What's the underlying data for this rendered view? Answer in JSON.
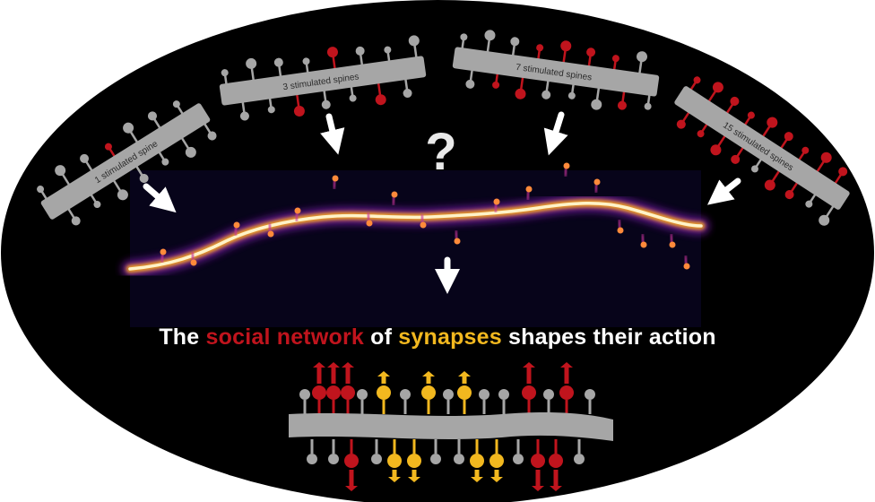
{
  "question_mark": "?",
  "headline": {
    "part1": "The ",
    "red_phrase": "social network",
    "part2": " of ",
    "yellow_word": "synapses",
    "part3": " shapes their action"
  },
  "conditions": [
    {
      "label": "1 stimulated spine",
      "stimulated": 1
    },
    {
      "label": "3 stimulated spines",
      "stimulated": 3
    },
    {
      "label": "7 stimulated spines",
      "stimulated": 7
    },
    {
      "label": "15 stimulated spines",
      "stimulated": 15
    }
  ],
  "colors": {
    "background": "#000000",
    "spine_gray": "#a6a6a6",
    "stimulated_red": "#c0141d",
    "synapse_yellow": "#f2b81f",
    "arrow_white": "#ffffff"
  }
}
